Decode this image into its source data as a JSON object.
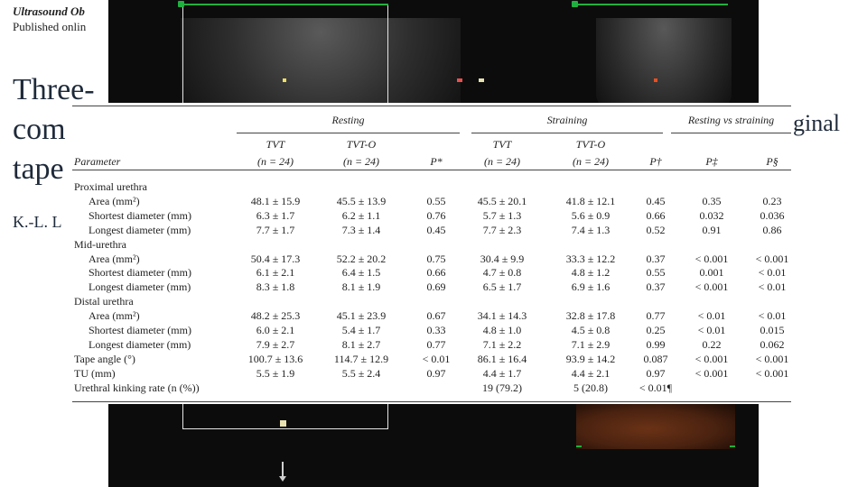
{
  "background": {
    "journal": "Ultrasound Ob",
    "published": "Published onlin",
    "title_lines": [
      "Three-",
      "com",
      "tape"
    ],
    "title_right": "ginal",
    "authors": "K.-L. L"
  },
  "table": {
    "group_headers": {
      "resting": "Resting",
      "straining": "Straining",
      "resting_vs_straining": "Resting vs straining"
    },
    "columns": [
      {
        "label": "TVT",
        "n": "(n = 24)"
      },
      {
        "label": "TVT-O",
        "n": "(n = 24)"
      },
      {
        "label": "P*",
        "n": ""
      },
      {
        "label": "TVT",
        "n": "(n = 24)"
      },
      {
        "label": "TVT-O",
        "n": "(n = 24)"
      },
      {
        "label": "P†",
        "n": ""
      },
      {
        "label": "P‡",
        "n": ""
      },
      {
        "label": "P§",
        "n": ""
      }
    ],
    "parameter_header": "Parameter",
    "rows": [
      {
        "label": "Proximal urethra",
        "section": true,
        "cells": []
      },
      {
        "label": "Area (mm²)",
        "indent": true,
        "cells": [
          "48.1 ± 15.9",
          "45.5 ± 13.9",
          "0.55",
          "45.5 ± 20.1",
          "41.8 ± 12.1",
          "0.45",
          "0.35",
          "0.23"
        ]
      },
      {
        "label": "Shortest diameter (mm)",
        "indent": true,
        "cells": [
          "6.3 ± 1.7",
          "6.2 ± 1.1",
          "0.76",
          "5.7 ± 1.3",
          "5.6 ± 0.9",
          "0.66",
          "0.032",
          "0.036"
        ]
      },
      {
        "label": "Longest diameter (mm)",
        "indent": true,
        "cells": [
          "7.7 ± 1.7",
          "7.3 ± 1.4",
          "0.45",
          "7.7 ± 2.3",
          "7.4 ± 1.3",
          "0.52",
          "0.91",
          "0.86"
        ]
      },
      {
        "label": "Mid-urethra",
        "section": true,
        "cells": []
      },
      {
        "label": "Area (mm²)",
        "indent": true,
        "cells": [
          "50.4 ± 17.3",
          "52.2 ± 20.2",
          "0.75",
          "30.4 ± 9.9",
          "33.3 ± 12.2",
          "0.37",
          "< 0.001",
          "< 0.001"
        ]
      },
      {
        "label": "Shortest diameter (mm)",
        "indent": true,
        "cells": [
          "6.1 ± 2.1",
          "6.4 ± 1.5",
          "0.66",
          "4.7 ± 0.8",
          "4.8 ± 1.2",
          "0.55",
          "0.001",
          "< 0.01"
        ]
      },
      {
        "label": "Longest diameter (mm)",
        "indent": true,
        "cells": [
          "8.3 ± 1.8",
          "8.1 ± 1.9",
          "0.69",
          "6.5 ± 1.7",
          "6.9 ± 1.6",
          "0.37",
          "< 0.001",
          "< 0.01"
        ]
      },
      {
        "label": "Distal urethra",
        "section": true,
        "cells": []
      },
      {
        "label": "Area (mm²)",
        "indent": true,
        "cells": [
          "48.2 ± 25.3",
          "45.1 ± 23.9",
          "0.67",
          "34.1 ± 14.3",
          "32.8 ± 17.8",
          "0.77",
          "< 0.01",
          "< 0.01"
        ]
      },
      {
        "label": "Shortest diameter (mm)",
        "indent": true,
        "cells": [
          "6.0 ± 2.1",
          "5.4 ± 1.7",
          "0.33",
          "4.8 ± 1.0",
          "4.5 ± 0.8",
          "0.25",
          "< 0.01",
          "0.015"
        ]
      },
      {
        "label": "Longest diameter (mm)",
        "indent": true,
        "cells": [
          "7.9 ± 2.7",
          "8.1 ± 2.7",
          "0.77",
          "7.1 ± 2.2",
          "7.1 ± 2.9",
          "0.99",
          "0.22",
          "0.062"
        ]
      },
      {
        "label": "Tape angle (°)",
        "cells": [
          "100.7 ± 13.6",
          "114.7 ± 12.9",
          "< 0.01",
          "86.1 ± 16.4",
          "93.9 ± 14.2",
          "0.087",
          "< 0.001",
          "< 0.001"
        ]
      },
      {
        "label": "TU (mm)",
        "cells": [
          "5.5 ± 1.9",
          "5.5 ± 2.4",
          "0.97",
          "4.4 ± 1.7",
          "4.4 ± 2.1",
          "0.97",
          "< 0.001",
          "< 0.001"
        ]
      },
      {
        "label": "Urethral kinking rate (n (%))",
        "cells": [
          "",
          "",
          "",
          "19 (79.2)",
          "5 (20.8)",
          "< 0.01¶",
          "",
          ""
        ]
      }
    ]
  }
}
